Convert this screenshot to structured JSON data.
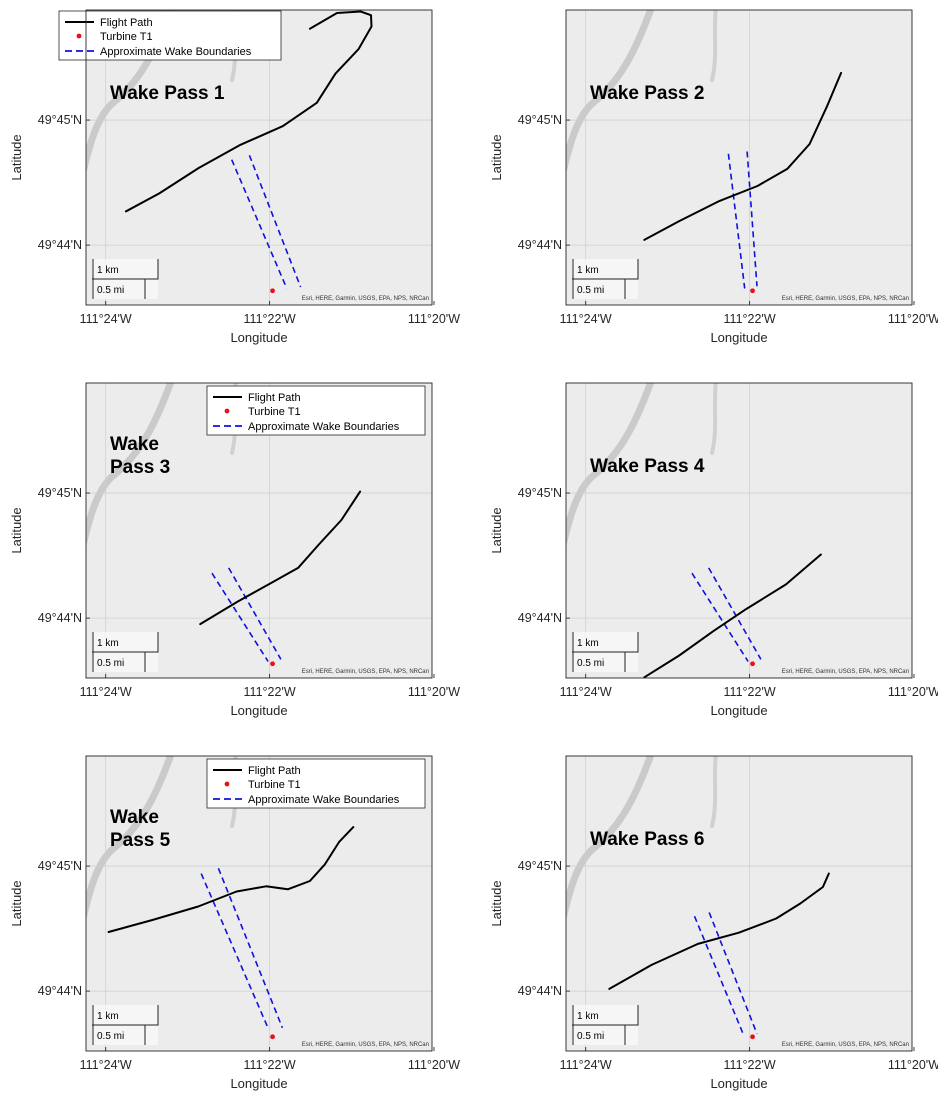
{
  "chart_data": {
    "type": "map",
    "x_axis": {
      "label": "Longitude",
      "ticks": [
        "111°24'W",
        "111°22'W",
        "111°20'W"
      ],
      "tick_values": [
        -111.4,
        -111.3667,
        -111.3333
      ],
      "range": [
        -111.404,
        -111.3337
      ]
    },
    "y_axis": {
      "label": "Latitude",
      "ticks": [
        "49°45'N",
        "49°44'N"
      ],
      "tick_values": [
        49.75,
        49.7333
      ],
      "range": [
        49.7253,
        49.7647
      ]
    },
    "legend_entries": [
      "Flight Path",
      "Turbine T1",
      "Approximate Wake Boundaries"
    ],
    "scalebar": {
      "km_label": "1 km",
      "mi_label": "0.5 mi"
    },
    "credit": "Esri, HERE, Garmin, USGS, EPA, NPS, NRCan",
    "turbine": {
      "name": "Turbine T1",
      "lon": -111.3661,
      "lat": 49.7272
    },
    "colors": {
      "flight_path": "#000000",
      "turbine": "#e8101a",
      "wake": "#1010e0",
      "map_bg": "#ececec",
      "river": "#c4c4c4",
      "grid": "#d0d0d0"
    },
    "panels": [
      {
        "title_lines": [
          "Wake Pass 1"
        ],
        "legend": true,
        "flight_path": [
          [
            -111.3959,
            49.7378
          ],
          [
            -111.3891,
            49.7402
          ],
          [
            -111.3811,
            49.7436
          ],
          [
            -111.3726,
            49.7467
          ],
          [
            -111.364,
            49.7492
          ],
          [
            -111.3571,
            49.7523
          ],
          [
            -111.3533,
            49.7562
          ],
          [
            -111.3486,
            49.7595
          ],
          [
            -111.346,
            49.7625
          ],
          [
            -111.3461,
            49.764
          ],
          [
            -111.3482,
            49.7645
          ],
          [
            -111.353,
            49.7643
          ],
          [
            -111.3585,
            49.7622
          ]
        ],
        "wake_lines": [
          [
            [
              -111.3744,
              49.7447
            ],
            [
              -111.3632,
              49.7275
            ]
          ],
          [
            [
              -111.3708,
              49.7453
            ],
            [
              -111.3604,
              49.7277
            ]
          ]
        ]
      },
      {
        "title_lines": [
          "Wake Pass 2"
        ],
        "legend": false,
        "flight_path": [
          [
            -111.3881,
            49.734
          ],
          [
            -111.381,
            49.7365
          ],
          [
            -111.3728,
            49.7392
          ],
          [
            -111.3651,
            49.7412
          ],
          [
            -111.359,
            49.7435
          ],
          [
            -111.3545,
            49.7468
          ],
          [
            -111.351,
            49.7518
          ],
          [
            -111.3481,
            49.7563
          ]
        ],
        "wake_lines": [
          [
            [
              -111.371,
              49.7455
            ],
            [
              -111.3677,
              49.7275
            ]
          ],
          [
            [
              -111.3672,
              49.7458
            ],
            [
              -111.3652,
              49.7278
            ]
          ]
        ]
      },
      {
        "title_lines": [
          "Wake",
          "Pass 3"
        ],
        "legend": true,
        "flight_path": [
          [
            -111.3808,
            49.7325
          ],
          [
            -111.3732,
            49.7355
          ],
          [
            -111.3658,
            49.7382
          ],
          [
            -111.3609,
            49.74
          ],
          [
            -111.3566,
            49.7432
          ],
          [
            -111.3521,
            49.7464
          ],
          [
            -111.3483,
            49.7502
          ]
        ],
        "wake_lines": [
          [
            [
              -111.3784,
              49.7393
            ],
            [
              -111.367,
              49.7275
            ]
          ],
          [
            [
              -111.375,
              49.74
            ],
            [
              -111.3644,
              49.7278
            ]
          ]
        ]
      },
      {
        "title_lines": [
          "Wake Pass 4"
        ],
        "legend": false,
        "flight_path": [
          [
            -111.3881,
            49.7254
          ],
          [
            -111.381,
            49.7283
          ],
          [
            -111.3742,
            49.7315
          ],
          [
            -111.3674,
            49.7345
          ],
          [
            -111.3593,
            49.7378
          ],
          [
            -111.3522,
            49.7418
          ]
        ],
        "wake_lines": [
          [
            [
              -111.3784,
              49.7393
            ],
            [
              -111.367,
              49.7275
            ]
          ],
          [
            [
              -111.375,
              49.74
            ],
            [
              -111.3644,
              49.7278
            ]
          ]
        ]
      },
      {
        "title_lines": [
          "Wake",
          "Pass 5"
        ],
        "legend": true,
        "flight_path": [
          [
            -111.3994,
            49.7412
          ],
          [
            -111.3905,
            49.7428
          ],
          [
            -111.3812,
            49.7446
          ],
          [
            -111.3734,
            49.7466
          ],
          [
            -111.3674,
            49.7473
          ],
          [
            -111.363,
            49.7469
          ],
          [
            -111.3585,
            49.748
          ],
          [
            -111.3555,
            49.7502
          ],
          [
            -111.3526,
            49.7532
          ],
          [
            -111.3497,
            49.7552
          ]
        ],
        "wake_lines": [
          [
            [
              -111.3806,
              49.749
            ],
            [
              -111.3669,
              49.7282
            ]
          ],
          [
            [
              -111.3771,
              49.7497
            ],
            [
              -111.3641,
              49.7284
            ]
          ]
        ]
      },
      {
        "title_lines": [
          "Wake Pass 6"
        ],
        "legend": false,
        "flight_path": [
          [
            -111.3952,
            49.7336
          ],
          [
            -111.3866,
            49.7368
          ],
          [
            -111.3772,
            49.7396
          ],
          [
            -111.3689,
            49.7411
          ],
          [
            -111.3613,
            49.743
          ],
          [
            -111.3564,
            49.745
          ],
          [
            -111.3518,
            49.7472
          ],
          [
            -111.3506,
            49.749
          ]
        ],
        "wake_lines": [
          [
            [
              -111.3779,
              49.7433
            ],
            [
              -111.3679,
              49.7274
            ]
          ],
          [
            [
              -111.3749,
              49.7438
            ],
            [
              -111.3652,
              49.7276
            ]
          ]
        ]
      }
    ]
  }
}
